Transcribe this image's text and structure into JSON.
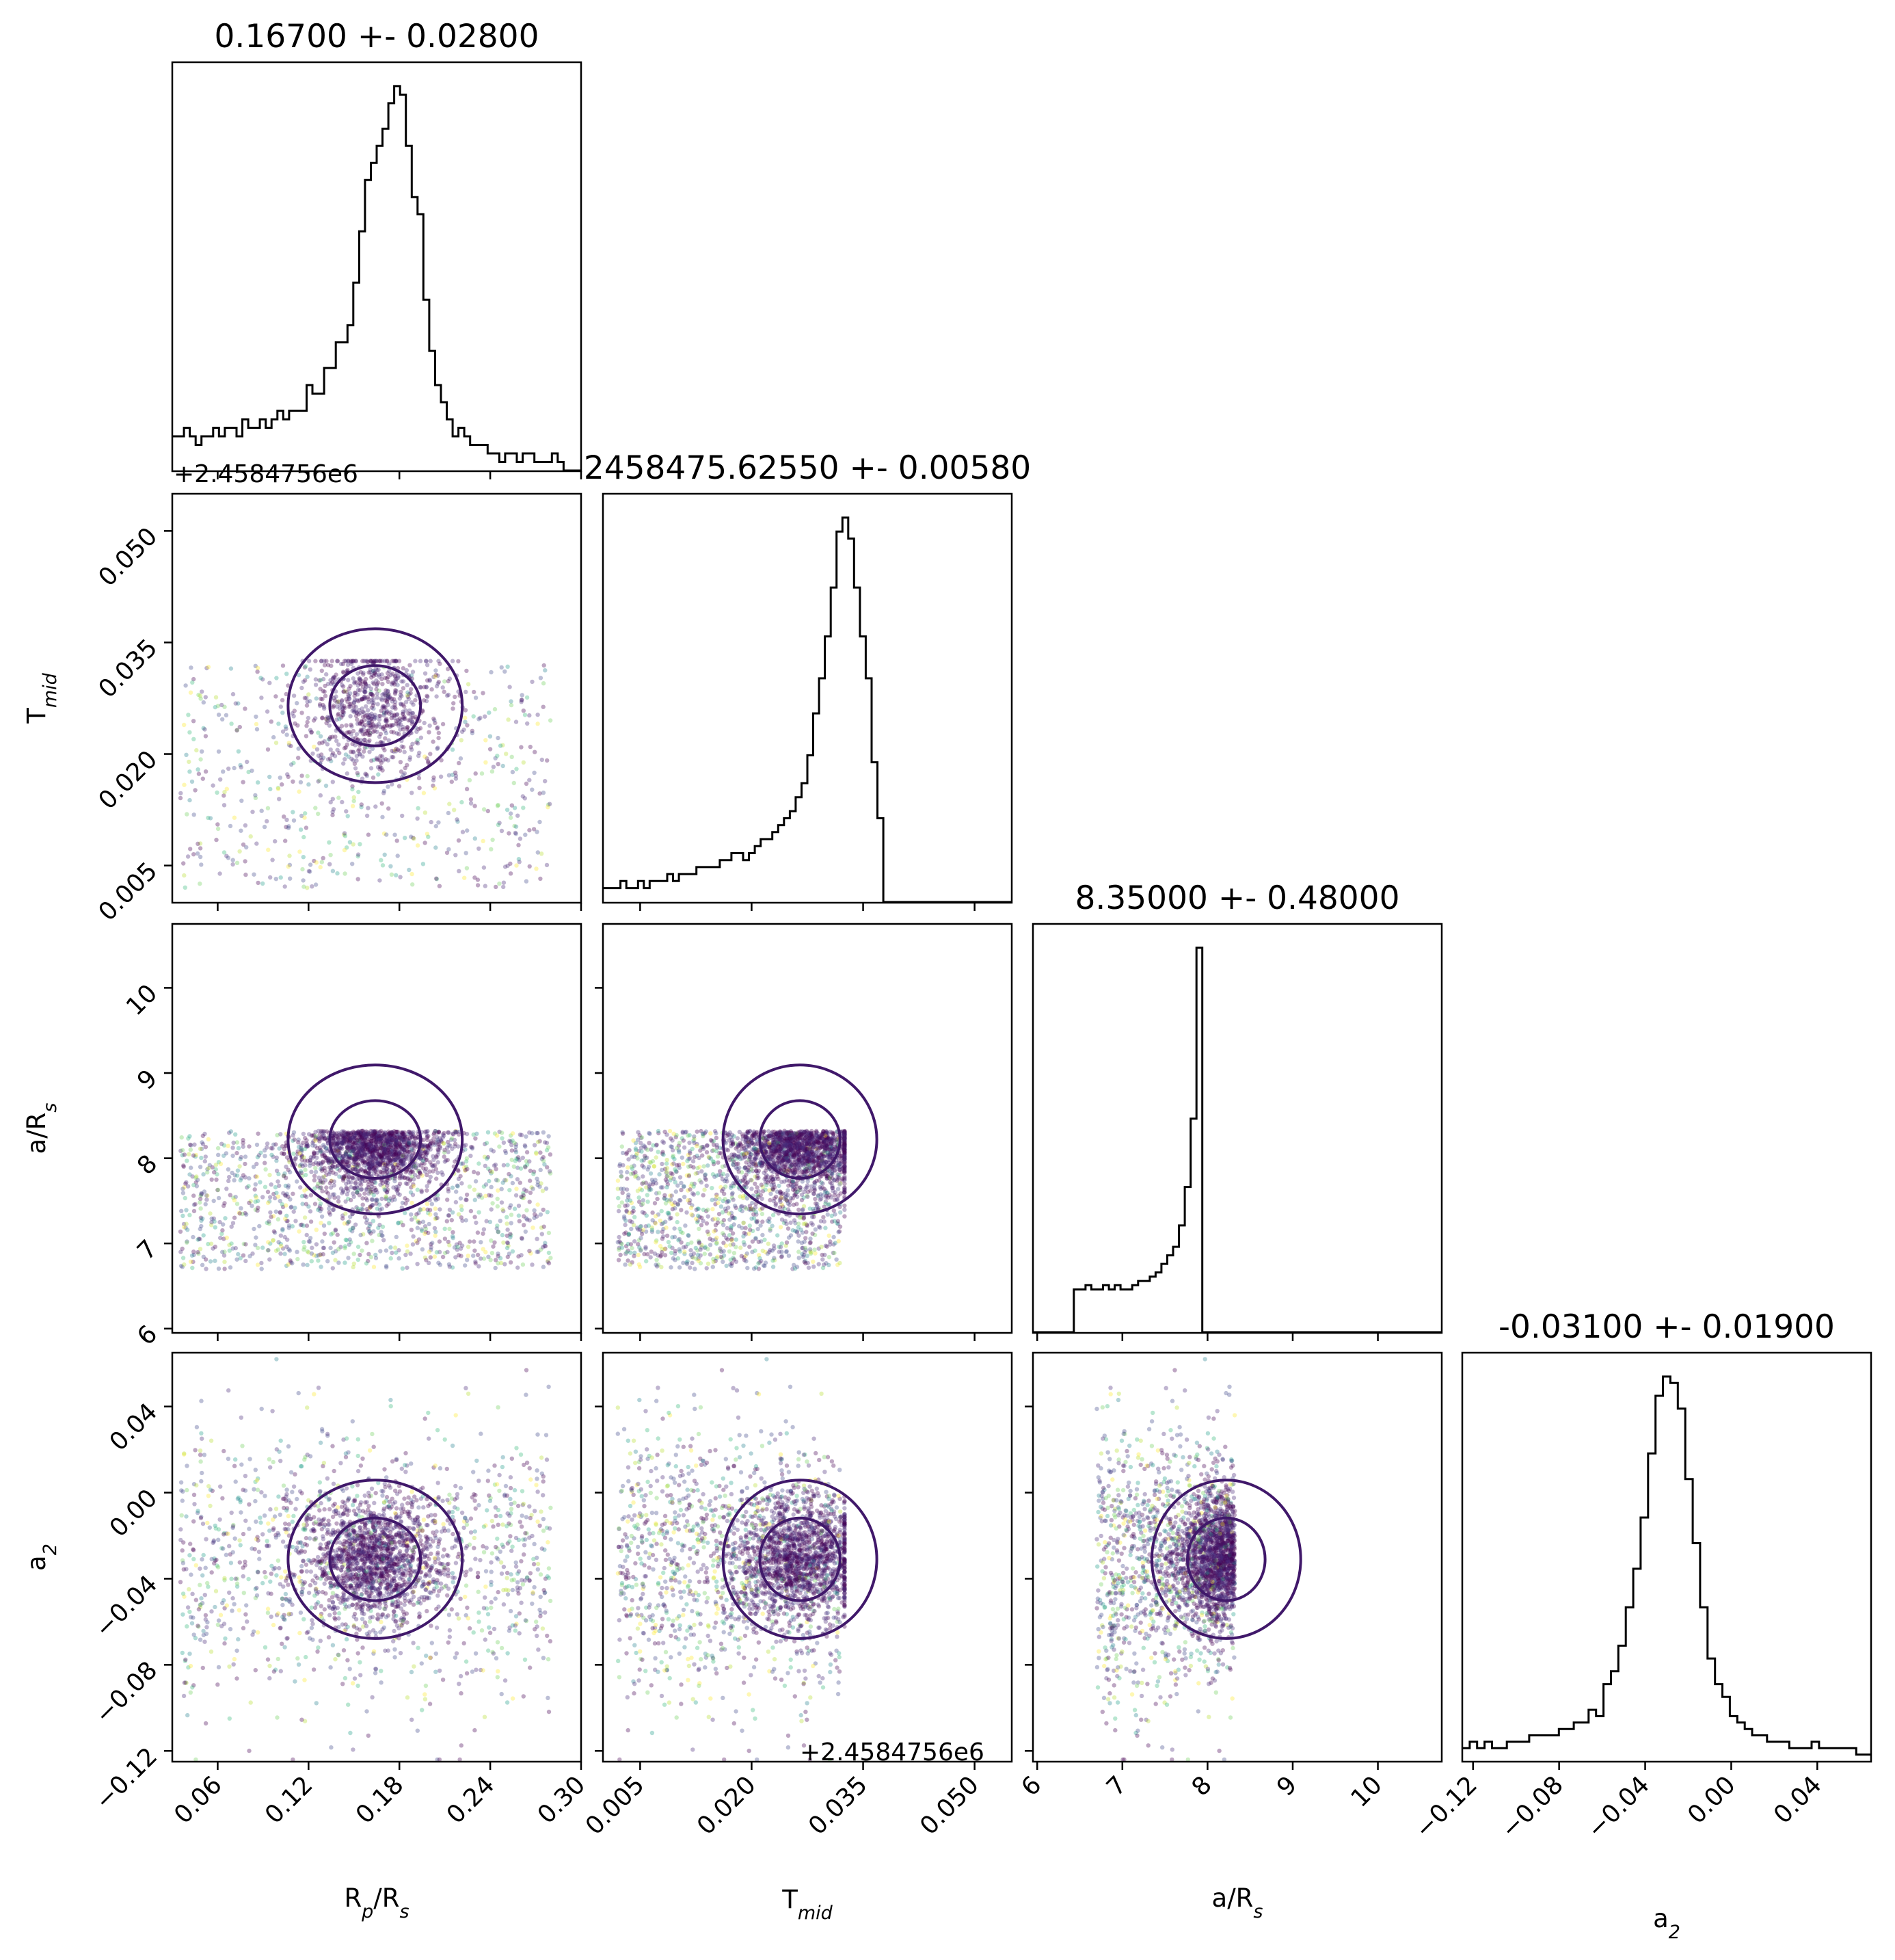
{
  "chart_data": {
    "type": "corner",
    "parameters": [
      {
        "key": "rp",
        "label": "R_p/R_s",
        "label_main": "R",
        "label_sub1": "p",
        "label_mid": "/R",
        "label_sub2": "s",
        "title": "0.16700 +- 0.02800",
        "lim": [
          0.03,
          0.3
        ],
        "ticks": [
          "0.06",
          "0.12",
          "0.18",
          "0.24",
          "0.30"
        ],
        "tick_values": [
          0.06,
          0.12,
          0.18,
          0.24,
          0.3
        ]
      },
      {
        "key": "tmid",
        "label": "T_mid",
        "label_main": "T",
        "label_sub1": "mid",
        "label_mid": "",
        "label_sub2": "",
        "title": "2458475.62550 +- 0.00580",
        "offset_text": "+2.4584756e6",
        "lim": [
          -0.0,
          0.055
        ],
        "ticks": [
          "0.005",
          "0.020",
          "0.035",
          "0.050"
        ],
        "tick_values": [
          0.005,
          0.02,
          0.035,
          0.05
        ]
      },
      {
        "key": "ars",
        "label": "a/R_s",
        "label_main": "a/R",
        "label_sub1": "",
        "label_mid": "",
        "label_sub2": "s",
        "title": "8.35000 +- 0.48000",
        "lim": [
          5.95,
          10.75
        ],
        "ticks": [
          "6",
          "7",
          "8",
          "9",
          "10"
        ],
        "tick_values": [
          6,
          7,
          8,
          9,
          10
        ]
      },
      {
        "key": "a2",
        "label": "a_2",
        "label_main": "a",
        "label_sub1": "2",
        "label_mid": "",
        "label_sub2": "",
        "title": "-0.03100 +- 0.01900",
        "lim": [
          -0.125,
          0.065
        ],
        "ticks": [
          "−0.12",
          "−0.08",
          "−0.04",
          "0.00",
          "0.04"
        ],
        "tick_values": [
          -0.12,
          -0.08,
          -0.04,
          0.0,
          0.04
        ]
      }
    ],
    "histograms": [
      {
        "param": "rp",
        "counts": [
          4,
          4,
          5,
          4,
          3,
          4,
          4,
          5,
          4,
          5,
          5,
          4,
          6,
          5,
          5,
          6,
          5,
          6,
          7,
          6,
          7,
          7,
          7,
          10,
          9,
          9,
          12,
          12,
          15,
          15,
          17,
          22,
          28,
          34,
          36,
          38,
          40,
          43,
          45,
          44,
          38,
          32,
          30,
          20,
          14,
          10,
          8,
          6,
          4,
          5,
          4,
          3,
          3,
          3,
          2,
          2,
          1,
          2,
          2,
          1,
          2,
          2,
          1,
          1,
          1,
          2,
          1,
          0,
          0,
          0
        ]
      },
      {
        "param": "tmid",
        "counts": [
          2,
          2,
          2,
          3,
          2,
          2,
          3,
          2,
          3,
          3,
          3,
          4,
          3,
          4,
          4,
          4,
          5,
          5,
          5,
          5,
          6,
          6,
          7,
          7,
          6,
          7,
          8,
          9,
          9,
          10,
          11,
          12,
          13,
          15,
          17,
          21,
          27,
          32,
          38,
          45,
          53,
          55,
          52,
          45,
          38,
          32,
          20,
          12,
          0,
          0,
          0,
          0,
          0,
          0,
          0,
          0,
          0,
          0,
          0,
          0,
          0,
          0,
          0,
          0,
          0,
          0,
          0,
          0,
          0,
          0
        ]
      },
      {
        "param": "ars",
        "counts": [
          0,
          0,
          0,
          0,
          0,
          0,
          0,
          10,
          10,
          11,
          10,
          10,
          11,
          10,
          11,
          10,
          10,
          11,
          12,
          12,
          13,
          14,
          16,
          18,
          20,
          25,
          34,
          50,
          90,
          0,
          0,
          0,
          0,
          0,
          0,
          0,
          0,
          0,
          0,
          0,
          0,
          0,
          0,
          0,
          0,
          0,
          0,
          0,
          0,
          0,
          0,
          0,
          0,
          0,
          0,
          0,
          0,
          0,
          0,
          0,
          0,
          0,
          0,
          0,
          0,
          0,
          0,
          0,
          0,
          0
        ]
      },
      {
        "param": "a2",
        "counts": [
          2,
          3,
          2,
          3,
          2,
          2,
          3,
          3,
          3,
          4,
          4,
          4,
          4,
          5,
          5,
          6,
          6,
          8,
          7,
          12,
          14,
          18,
          24,
          30,
          38,
          48,
          57,
          60,
          59,
          55,
          44,
          34,
          24,
          16,
          12,
          10,
          7,
          6,
          5,
          4,
          4,
          3,
          3,
          3,
          2,
          2,
          2,
          3,
          2,
          2,
          2,
          2,
          2,
          1,
          1
        ]
      }
    ],
    "contour_color": "#40186a",
    "point_colormap": "viridis",
    "note_axes": "lower-triangle scatter panels with 1-sigma and 2-sigma density contours; diagonal 1D histograms with titles"
  }
}
